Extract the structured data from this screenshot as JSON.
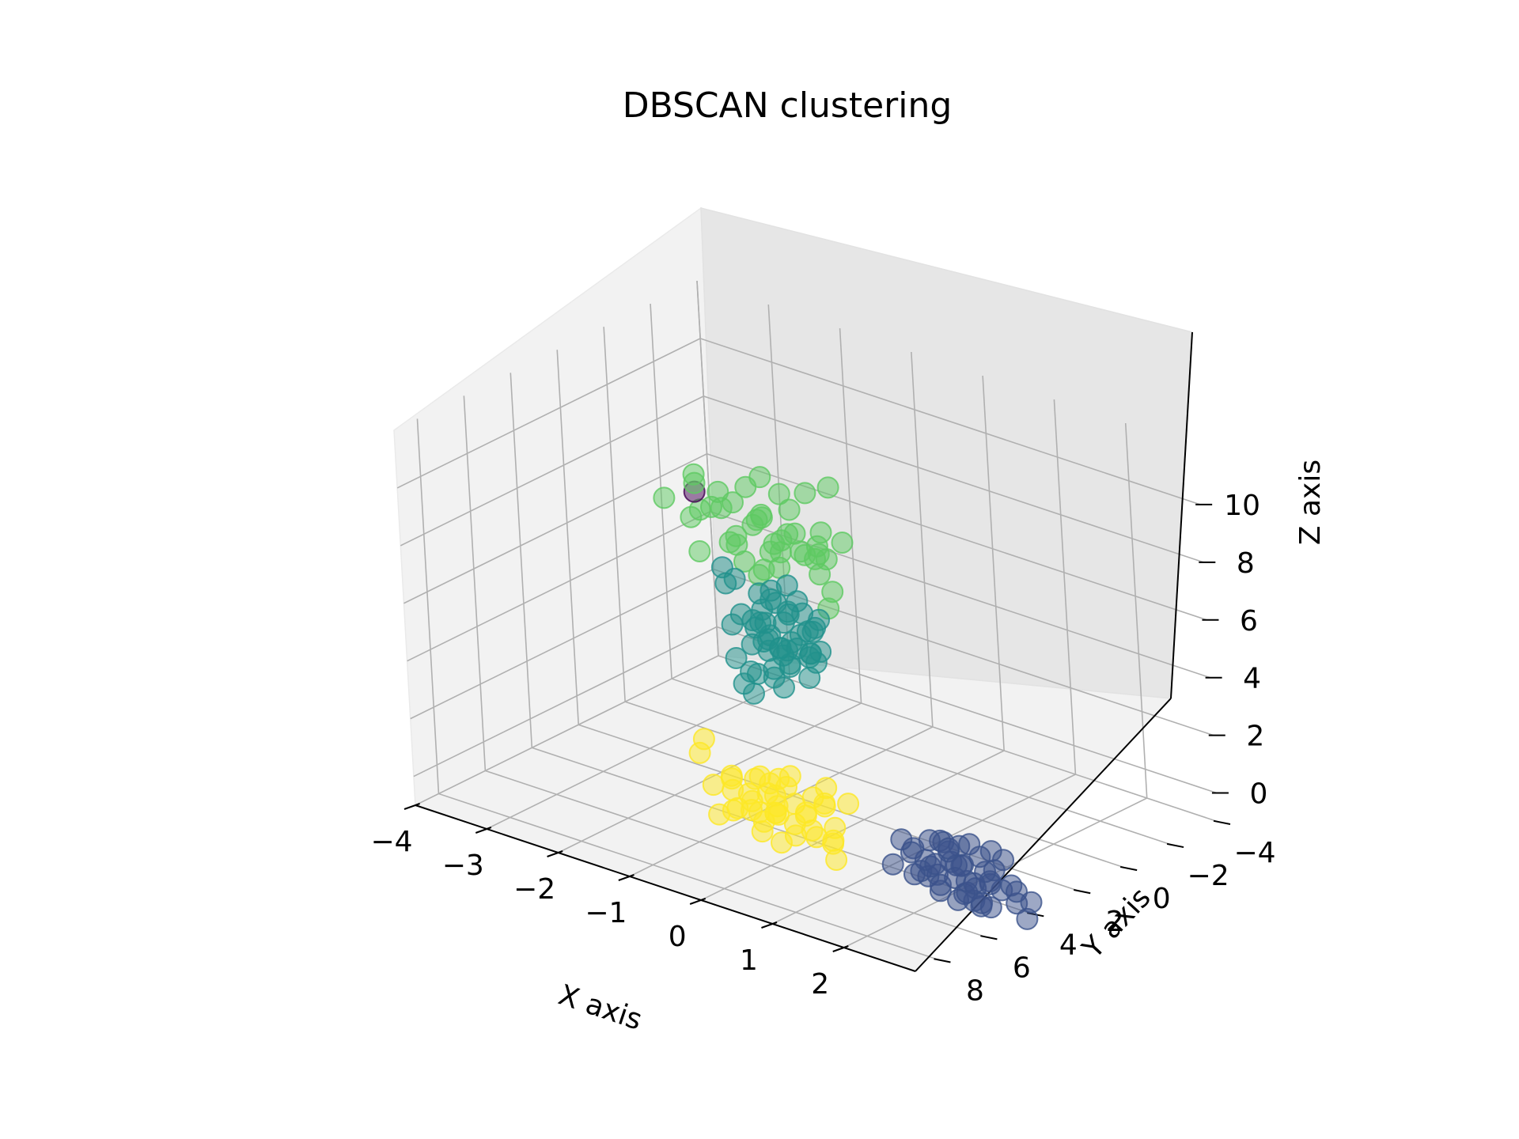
{
  "chart_data": {
    "type": "scatter",
    "projection": "3d",
    "title": "DBSCAN clustering",
    "xlabel": "X axis",
    "ylabel": "Y axis",
    "zlabel": "Z axis",
    "xlim": [
      -4,
      3
    ],
    "ylim": [
      -4,
      9
    ],
    "zlim": [
      -1,
      12
    ],
    "xticks": [
      "−4",
      "−3",
      "−2",
      "−1",
      "0",
      "1",
      "2"
    ],
    "yticks": [
      "−4",
      "−2",
      "0",
      "2",
      "4",
      "6",
      "8"
    ],
    "zticks": [
      "0",
      "2",
      "4",
      "6",
      "8",
      "10"
    ],
    "grid": true,
    "series": [
      {
        "cluster": -1,
        "color": "#440154",
        "points": [
          [
            -1.2,
            4.8,
            10.5
          ]
        ]
      },
      {
        "cluster": 0,
        "color": "#3b528b",
        "points": [
          [
            2.3,
            4.6,
            -0.2
          ],
          [
            2.1,
            4.4,
            0.1
          ],
          [
            2.0,
            5.2,
            0.3
          ],
          [
            2.4,
            4.9,
            -0.4
          ],
          [
            1.8,
            4.8,
            0.2
          ],
          [
            2.2,
            5.4,
            -0.1
          ],
          [
            2.5,
            4.2,
            -0.3
          ],
          [
            1.9,
            4.1,
            0.4
          ],
          [
            2.6,
            5.6,
            0.0
          ],
          [
            2.7,
            4.8,
            0.2
          ],
          [
            2.0,
            3.9,
            -0.2
          ],
          [
            2.3,
            5.8,
            0.5
          ],
          [
            2.8,
            5.1,
            -0.5
          ],
          [
            1.7,
            5.0,
            -0.3
          ],
          [
            2.4,
            3.8,
            0.6
          ],
          [
            2.1,
            4.7,
            0.7
          ],
          [
            2.9,
            4.5,
            0.1
          ],
          [
            2.2,
            4.0,
            -0.6
          ],
          [
            2.5,
            5.3,
            0.8
          ],
          [
            1.8,
            4.4,
            -0.1
          ],
          [
            2.6,
            4.3,
            0.3
          ],
          [
            2.3,
            5.0,
            -0.7
          ],
          [
            2.0,
            4.6,
            0.9
          ],
          [
            2.7,
            5.5,
            -0.2
          ],
          [
            1.6,
            4.7,
            0.4
          ],
          [
            2.4,
            4.1,
            0.0
          ],
          [
            2.1,
            5.6,
            0.2
          ],
          [
            2.8,
            4.0,
            -0.4
          ],
          [
            2.2,
            4.9,
            0.5
          ],
          [
            2.5,
            4.6,
            -0.8
          ],
          [
            3.0,
            5.2,
            0.3
          ],
          [
            1.9,
            5.3,
            0.1
          ],
          [
            2.6,
            3.9,
            0.5
          ],
          [
            2.3,
            4.4,
            1.0
          ],
          [
            2.0,
            4.2,
            -0.5
          ],
          [
            3.1,
            4.9,
            -0.2
          ],
          [
            2.4,
            6.0,
            0.1
          ],
          [
            1.7,
            4.3,
            0.6
          ],
          [
            2.8,
            5.7,
            0.4
          ],
          [
            2.2,
            3.7,
            0.2
          ],
          [
            1.5,
            4.5,
            0.1
          ],
          [
            1.4,
            5.0,
            -0.2
          ],
          [
            1.3,
            4.3,
            0.3
          ],
          [
            2.5,
            6.2,
            2.0
          ],
          [
            2.7,
            6.0,
            1.9
          ],
          [
            3.1,
            4.5,
            -0.9
          ],
          [
            3.0,
            4.0,
            -0.6
          ],
          [
            2.9,
            5.8,
            -0.1
          ]
        ]
      },
      {
        "cluster": 1,
        "color": "#21918c",
        "points": [
          [
            -1.5,
            0.5,
            4.0
          ],
          [
            -1.3,
            0.8,
            3.6
          ],
          [
            -1.7,
            0.2,
            4.4
          ],
          [
            -1.2,
            0.4,
            3.9
          ],
          [
            -1.6,
            0.9,
            3.5
          ],
          [
            -1.4,
            0.0,
            4.2
          ],
          [
            -1.8,
            0.6,
            3.8
          ],
          [
            -1.1,
            1.0,
            4.1
          ],
          [
            -1.5,
            1.2,
            3.3
          ],
          [
            -1.9,
            0.3,
            4.6
          ],
          [
            -1.3,
            -0.2,
            3.7
          ],
          [
            -1.6,
            0.7,
            4.8
          ],
          [
            -1.0,
            0.5,
            3.4
          ],
          [
            -1.7,
            1.1,
            3.9
          ],
          [
            -1.4,
            0.3,
            3.1
          ],
          [
            -2.0,
            0.8,
            4.0
          ],
          [
            -1.2,
            1.3,
            3.6
          ],
          [
            -1.5,
            -0.1,
            4.5
          ],
          [
            -1.8,
            1.0,
            3.2
          ],
          [
            -1.1,
            0.2,
            4.3
          ],
          [
            -1.6,
            0.4,
            3.0
          ],
          [
            -1.3,
            0.9,
            4.7
          ],
          [
            -1.9,
            0.1,
            3.5
          ],
          [
            -1.4,
            1.4,
            4.0
          ],
          [
            -1.7,
            -0.3,
            3.8
          ],
          [
            -1.0,
            0.7,
            3.1
          ],
          [
            -1.5,
            0.6,
            2.9
          ],
          [
            -1.2,
            1.6,
            3.8
          ],
          [
            -1.8,
            0.5,
            4.2
          ],
          [
            -1.4,
            -0.4,
            3.4
          ],
          [
            -2.1,
            0.9,
            3.6
          ],
          [
            -1.6,
            1.5,
            4.4
          ],
          [
            -1.3,
            0.1,
            2.8
          ],
          [
            -0.9,
            1.2,
            3.7
          ],
          [
            -1.7,
            0.8,
            3.3
          ],
          [
            -0.8,
            1.5,
            3.9
          ],
          [
            -1.0,
            1.8,
            3.5
          ],
          [
            -1.2,
            1.9,
            3.2
          ],
          [
            -0.9,
            2.1,
            3.6
          ],
          [
            -1.1,
            2.2,
            3.1
          ],
          [
            -1.4,
            2.0,
            2.9
          ],
          [
            -0.7,
            1.9,
            3.3
          ],
          [
            -1.6,
            1.7,
            2.7
          ],
          [
            -2.2,
            0.4,
            4.9
          ],
          [
            -2.0,
            -0.5,
            4.3
          ],
          [
            -2.3,
            0.6,
            5.3
          ],
          [
            -1.8,
            -0.6,
            4.6
          ],
          [
            -2.4,
            0.2,
            4.5
          ],
          [
            -1.5,
            2.3,
            2.6
          ],
          [
            -1.9,
            1.4,
            2.8
          ],
          [
            -0.9,
            2.4,
            3.0
          ],
          [
            -1.3,
            2.5,
            2.5
          ]
        ]
      },
      {
        "cluster": 2,
        "color": "#5ec962",
        "points": [
          [
            -0.4,
            4.6,
            10.1
          ],
          [
            -0.6,
            4.2,
            9.6
          ],
          [
            -0.2,
            5.0,
            10.6
          ],
          [
            -0.8,
            4.4,
            10.3
          ],
          [
            0.0,
            4.8,
            9.8
          ],
          [
            -0.5,
            5.2,
            9.4
          ],
          [
            -0.3,
            3.9,
            10.8
          ],
          [
            0.1,
            5.4,
            10.0
          ],
          [
            -0.7,
            4.9,
            9.2
          ],
          [
            -0.1,
            4.1,
            10.5
          ],
          [
            0.2,
            4.6,
            9.5
          ],
          [
            -0.9,
            4.7,
            10.7
          ],
          [
            -0.4,
            5.5,
            9.9
          ],
          [
            0.3,
            5.1,
            10.4
          ],
          [
            -0.6,
            3.8,
            9.7
          ],
          [
            0.4,
            4.3,
            10.2
          ],
          [
            -0.2,
            5.8,
            9.3
          ],
          [
            0.0,
            3.7,
            11.0
          ],
          [
            -1.0,
            4.3,
            9.9
          ],
          [
            0.5,
            4.9,
            9.6
          ],
          [
            -0.3,
            4.4,
            9.0
          ],
          [
            0.6,
            5.6,
            10.1
          ],
          [
            -0.8,
            5.3,
            10.5
          ],
          [
            0.2,
            3.9,
            9.4
          ],
          [
            -0.5,
            4.7,
            11.2
          ],
          [
            0.7,
            5.0,
            9.8
          ],
          [
            -1.1,
            4.9,
            10.0
          ],
          [
            0.4,
            5.7,
            10.7
          ],
          [
            -0.1,
            5.3,
            8.9
          ],
          [
            0.8,
            4.6,
            10.3
          ],
          [
            -1.3,
            4.5,
            10.9
          ],
          [
            -1.4,
            4.2,
            10.4
          ],
          [
            -1.2,
            5.0,
            9.7
          ],
          [
            0.9,
            5.9,
            10.5
          ],
          [
            1.0,
            6.2,
            10.0
          ],
          [
            1.1,
            6.0,
            9.4
          ],
          [
            0.5,
            6.4,
            9.9
          ],
          [
            0.3,
            3.6,
            11.4
          ],
          [
            -0.7,
            3.5,
            10.9
          ],
          [
            1.2,
            6.5,
            9.1
          ],
          [
            0.6,
            6.6,
            10.6
          ],
          [
            -0.9,
            5.6,
            9.0
          ],
          [
            0.1,
            6.1,
            9.2
          ],
          [
            -1.5,
            5.2,
            10.2
          ]
        ]
      },
      {
        "cluster": 3,
        "color": "#fde725",
        "points": [
          [
            -0.5,
            4.5,
            0.5
          ],
          [
            -0.3,
            4.8,
            0.1
          ],
          [
            -0.7,
            4.2,
            0.8
          ],
          [
            -0.2,
            5.1,
            0.3
          ],
          [
            -0.6,
            4.6,
            -0.2
          ],
          [
            -0.4,
            4.0,
            0.6
          ],
          [
            0.0,
            4.9,
            0.0
          ],
          [
            -0.8,
            4.4,
            0.2
          ],
          [
            -0.1,
            5.3,
            0.7
          ],
          [
            -0.5,
            4.1,
            -0.4
          ],
          [
            0.1,
            4.7,
            0.4
          ],
          [
            -0.9,
            4.8,
            0.9
          ],
          [
            -0.3,
            5.4,
            -0.3
          ],
          [
            -0.6,
            3.9,
            0.1
          ],
          [
            0.2,
            5.0,
            0.5
          ],
          [
            -0.4,
            4.3,
            1.0
          ],
          [
            -0.8,
            5.1,
            -0.1
          ],
          [
            0.0,
            4.2,
            -0.5
          ],
          [
            -0.2,
            5.6,
            0.2
          ],
          [
            -1.0,
            4.5,
            0.6
          ],
          [
            0.3,
            4.5,
            0.8
          ],
          [
            -0.7,
            3.8,
            0.4
          ],
          [
            -0.1,
            4.6,
            -0.6
          ],
          [
            0.4,
            5.2,
            0.0
          ],
          [
            -0.5,
            5.0,
            1.2
          ],
          [
            -1.1,
            4.2,
            0.0
          ],
          [
            0.1,
            3.9,
            0.3
          ],
          [
            -0.3,
            5.8,
            0.6
          ],
          [
            0.5,
            4.8,
            -0.2
          ],
          [
            -0.9,
            4.0,
            -0.3
          ],
          [
            -0.6,
            5.5,
            0.3
          ],
          [
            0.2,
            4.1,
            1.1
          ],
          [
            -1.2,
            4.7,
            0.3
          ],
          [
            -0.4,
            3.7,
            -0.1
          ],
          [
            0.6,
            5.0,
            0.4
          ],
          [
            -0.2,
            4.4,
            1.3
          ],
          [
            -0.8,
            5.7,
            0.0
          ],
          [
            0.0,
            5.5,
            -0.4
          ],
          [
            -1.3,
            4.9,
            1.4
          ],
          [
            -1.4,
            4.4,
            1.6
          ],
          [
            0.7,
            5.4,
            0.1
          ],
          [
            0.8,
            5.6,
            -0.3
          ],
          [
            0.4,
            3.8,
            0.6
          ],
          [
            -0.2,
            3.5,
            0.2
          ]
        ]
      }
    ]
  }
}
